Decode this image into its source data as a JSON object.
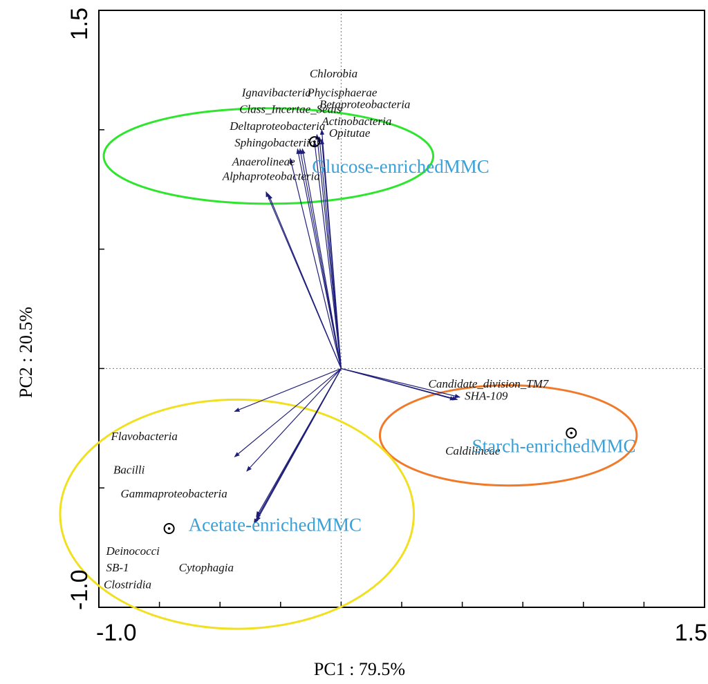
{
  "chart_data": {
    "type": "scatter",
    "subtype": "pca-biplot",
    "xlabel": "PC1 : 79.5%",
    "ylabel": "PC2 : 20.5%",
    "xlim": [
      -1.0,
      1.5
    ],
    "ylim": [
      -1.0,
      1.5
    ],
    "x_tick_labels": [
      {
        "value": -1.0,
        "label": "-1.0"
      },
      {
        "value": 1.5,
        "label": "1.5"
      }
    ],
    "y_tick_labels": [
      {
        "value": 1.5,
        "label": "1.5"
      },
      {
        "value": -1.0,
        "label": "-1.0"
      }
    ],
    "x_ticks": [
      -1.0,
      -0.75,
      -0.5,
      -0.25,
      0,
      0.25,
      0.5,
      0.75,
      1.0,
      1.25,
      1.5
    ],
    "y_ticks": [
      -1.0,
      -0.5,
      0,
      0.5,
      1.0,
      1.5
    ],
    "zero_lines": true,
    "arrow_color": "#1f1f7a",
    "vectors": [
      {
        "name": "Chlorobia",
        "x": -0.08,
        "y": 1.0
      },
      {
        "name": "Phycisphaerae",
        "x": -0.1,
        "y": 0.98
      },
      {
        "name": "Betaproteobacteria",
        "x": -0.09,
        "y": 0.97
      },
      {
        "name": "Actinobacteria",
        "x": -0.08,
        "y": 0.96
      },
      {
        "name": "Opitutae",
        "x": -0.11,
        "y": 0.95
      },
      {
        "name": "Ignavibacteria",
        "x": -0.17,
        "y": 0.92
      },
      {
        "name": "Class_Incertae_Sedis",
        "x": -0.16,
        "y": 0.92
      },
      {
        "name": "Deltaproteobacteria",
        "x": -0.18,
        "y": 0.92
      },
      {
        "name": "Sphingobacteriia",
        "x": -0.21,
        "y": 0.88
      },
      {
        "name": "Anaerolineae",
        "x": -0.31,
        "y": 0.74
      },
      {
        "name": "Alphaproteobacteria",
        "x": -0.3,
        "y": 0.73
      },
      {
        "name": "Candidate_division_TM7",
        "x": 0.49,
        "y": -0.12
      },
      {
        "name": "SHA-109",
        "x": 0.48,
        "y": -0.13
      },
      {
        "name": "Caldilineae",
        "x": 0.47,
        "y": -0.13
      },
      {
        "name": "Flavobacteria",
        "x": -0.44,
        "y": -0.18
      },
      {
        "name": "Bacilli",
        "x": -0.44,
        "y": -0.37
      },
      {
        "name": "Gammaproteobacteria",
        "x": -0.39,
        "y": -0.43
      },
      {
        "name": "Deinococci",
        "x": -0.35,
        "y": -0.63
      },
      {
        "name": "SB-1",
        "x": -0.35,
        "y": -0.64
      },
      {
        "name": "Clostridia",
        "x": -0.36,
        "y": -0.65
      },
      {
        "name": "Cytophagia",
        "x": -0.35,
        "y": -0.62
      }
    ],
    "vector_labels": [
      {
        "text": "Chlorobia",
        "x": -0.13,
        "y": 1.22
      },
      {
        "text": "Phycisphaerae",
        "x": -0.14,
        "y": 1.14
      },
      {
        "text": "Ignavibacteria",
        "x": -0.41,
        "y": 1.14
      },
      {
        "text": "Class_Incertae_Sedis",
        "x": -0.42,
        "y": 1.07
      },
      {
        "text": "Betaproteobacteria",
        "x": -0.09,
        "y": 1.09
      },
      {
        "text": "Deltaproteobacteria",
        "x": -0.46,
        "y": 1.0
      },
      {
        "text": "Actinobacteria",
        "x": -0.08,
        "y": 1.02
      },
      {
        "text": "Opitutae",
        "x": -0.05,
        "y": 0.97
      },
      {
        "text": "Sphingobacteriia",
        "x": -0.44,
        "y": 0.93
      },
      {
        "text": "Anaerolineae",
        "x": -0.45,
        "y": 0.85
      },
      {
        "text": "Alphaproteobacteria",
        "x": -0.49,
        "y": 0.79
      },
      {
        "text": "Candidate_division_TM7",
        "x": 0.36,
        "y": -0.08
      },
      {
        "text": "SHA-109",
        "x": 0.51,
        "y": -0.13
      },
      {
        "text": "Caldilineae",
        "x": 0.43,
        "y": -0.36
      },
      {
        "text": "Flavobacteria",
        "x": -0.95,
        "y": -0.3
      },
      {
        "text": "Bacilli",
        "x": -0.94,
        "y": -0.44
      },
      {
        "text": "Gammaproteobacteria",
        "x": -0.91,
        "y": -0.54
      },
      {
        "text": "Deinococci",
        "x": -0.97,
        "y": -0.78
      },
      {
        "text": "SB-1",
        "x": -0.97,
        "y": -0.85
      },
      {
        "text": "Clostridia",
        "x": -0.98,
        "y": -0.92
      },
      {
        "text": "Cytophagia",
        "x": -0.67,
        "y": -0.85
      }
    ],
    "groups": [
      {
        "name": "Glucose-enrichedMMC",
        "x": -0.11,
        "y": 0.95,
        "label_x": -0.12,
        "label_y": 0.82,
        "ellipse_color": "#2ee52e",
        "ellipse": {
          "cx": -0.3,
          "cy": 0.89,
          "rx": 0.68,
          "ry": 0.2
        }
      },
      {
        "name": "Starch-enrichedMMC",
        "x": 0.95,
        "y": -0.27,
        "label_x": 0.54,
        "label_y": -0.35,
        "ellipse_color": "#f07a2a",
        "ellipse": {
          "cx": 0.69,
          "cy": -0.28,
          "rx": 0.53,
          "ry": 0.21
        }
      },
      {
        "name": "Acetate-enrichedMMC",
        "x": -0.71,
        "y": -0.67,
        "label_x": -0.63,
        "label_y": -0.68,
        "ellipse_color": "#f0e020",
        "ellipse": {
          "cx": -0.43,
          "cy": -0.61,
          "rx": 0.73,
          "ry": 0.48
        }
      }
    ]
  }
}
